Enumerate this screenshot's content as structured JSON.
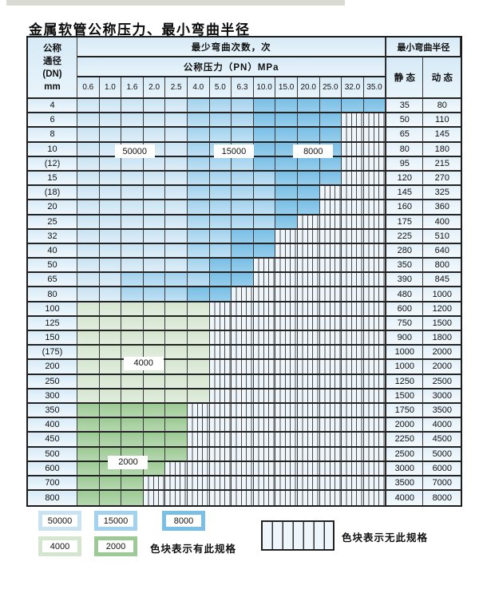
{
  "page": {
    "title": "金属软管公称压力、最小弯曲半径"
  },
  "colors": {
    "c50000": "#c9e3f3",
    "c15000": "#a2d2ee",
    "c8000": "#79bfe6",
    "c4000": "#d5e6d0",
    "c2000": "#9cca94",
    "stripe_bg": "#eff6fb",
    "grid": "#333333"
  },
  "table": {
    "header": {
      "dn_lines": [
        "公称",
        "通径",
        "(DN)",
        "mm"
      ],
      "cycles_label": "最少弯曲次数，次",
      "pressure_label": "公称压力（PN）MPa",
      "pressure_columns": [
        "0.6",
        "1.0",
        "1.6",
        "2.0",
        "2.5",
        "4.0",
        "5.0",
        "6.3",
        "10.0",
        "15.0",
        "20.0",
        "25.0",
        "32.0",
        "35.0"
      ],
      "radius_label": "最小弯曲半径",
      "static_label": "静 态",
      "dynamic_label": "动 态"
    },
    "overlay_labels": [
      {
        "text": "50000",
        "ci": 2.6,
        "ri": 3.6
      },
      {
        "text": "15000",
        "ci": 7.1,
        "ri": 3.6
      },
      {
        "text": "8000",
        "ci": 10.7,
        "ri": 3.6
      },
      {
        "text": "4000",
        "ci": 3.0,
        "ri": 18.2
      },
      {
        "text": "2000",
        "ci": 2.3,
        "ri": 25.0
      }
    ],
    "rows": [
      {
        "dn": "4",
        "static": "35",
        "dynamic": "80",
        "cells": [
          "50000",
          "50000",
          "50000",
          "50000",
          "50000",
          "15000",
          "15000",
          "15000",
          "8000",
          "8000",
          "8000",
          "8000",
          "8000",
          "8000"
        ]
      },
      {
        "dn": "6",
        "static": "50",
        "dynamic": "110",
        "cells": [
          "50000",
          "50000",
          "50000",
          "50000",
          "50000",
          "15000",
          "15000",
          "15000",
          "8000",
          "8000",
          "8000",
          "8000",
          "none",
          "none"
        ]
      },
      {
        "dn": "8",
        "static": "65",
        "dynamic": "145",
        "cells": [
          "50000",
          "50000",
          "50000",
          "50000",
          "50000",
          "15000",
          "15000",
          "15000",
          "8000",
          "8000",
          "8000",
          "8000",
          "none",
          "none"
        ]
      },
      {
        "dn": "10",
        "static": "80",
        "dynamic": "180",
        "cells": [
          "50000",
          "50000",
          "50000",
          "50000",
          "50000",
          "15000",
          "15000",
          "15000",
          "8000",
          "8000",
          "8000",
          "8000",
          "none",
          "none"
        ]
      },
      {
        "dn": "(12)",
        "static": "95",
        "dynamic": "215",
        "cells": [
          "50000",
          "50000",
          "50000",
          "50000",
          "50000",
          "15000",
          "15000",
          "15000",
          "8000",
          "8000",
          "8000",
          "8000",
          "none",
          "none"
        ]
      },
      {
        "dn": "15",
        "static": "120",
        "dynamic": "270",
        "cells": [
          "50000",
          "50000",
          "50000",
          "50000",
          "50000",
          "15000",
          "15000",
          "15000",
          "15000",
          "8000",
          "8000",
          "8000",
          "none",
          "none"
        ]
      },
      {
        "dn": "(18)",
        "static": "145",
        "dynamic": "325",
        "cells": [
          "50000",
          "50000",
          "50000",
          "50000",
          "50000",
          "15000",
          "15000",
          "15000",
          "15000",
          "8000",
          "8000",
          "none",
          "none",
          "none"
        ]
      },
      {
        "dn": "20",
        "static": "160",
        "dynamic": "360",
        "cells": [
          "50000",
          "50000",
          "50000",
          "50000",
          "50000",
          "15000",
          "15000",
          "15000",
          "15000",
          "8000",
          "8000",
          "none",
          "none",
          "none"
        ]
      },
      {
        "dn": "25",
        "static": "175",
        "dynamic": "400",
        "cells": [
          "50000",
          "50000",
          "50000",
          "50000",
          "50000",
          "15000",
          "15000",
          "15000",
          "15000",
          "8000",
          "none",
          "none",
          "none",
          "none"
        ]
      },
      {
        "dn": "32",
        "static": "225",
        "dynamic": "510",
        "cells": [
          "50000",
          "50000",
          "50000",
          "50000",
          "50000",
          "15000",
          "15000",
          "8000",
          "8000",
          "none",
          "none",
          "none",
          "none",
          "none"
        ]
      },
      {
        "dn": "40",
        "static": "280",
        "dynamic": "640",
        "cells": [
          "50000",
          "50000",
          "50000",
          "50000",
          "50000",
          "15000",
          "15000",
          "8000",
          "8000",
          "none",
          "none",
          "none",
          "none",
          "none"
        ]
      },
      {
        "dn": "50",
        "static": "350",
        "dynamic": "800",
        "cells": [
          "50000",
          "50000",
          "50000",
          "50000",
          "50000",
          "15000",
          "8000",
          "8000",
          "none",
          "none",
          "none",
          "none",
          "none",
          "none"
        ]
      },
      {
        "dn": "65",
        "static": "390",
        "dynamic": "845",
        "cells": [
          "50000",
          "50000",
          "15000",
          "15000",
          "15000",
          "15000",
          "8000",
          "8000",
          "none",
          "none",
          "none",
          "none",
          "none",
          "none"
        ]
      },
      {
        "dn": "80",
        "static": "480",
        "dynamic": "1000",
        "cells": [
          "50000",
          "50000",
          "15000",
          "15000",
          "15000",
          "8000",
          "8000",
          "none",
          "none",
          "none",
          "none",
          "none",
          "none",
          "none"
        ]
      },
      {
        "dn": "100",
        "static": "600",
        "dynamic": "1200",
        "cells": [
          "4000",
          "4000",
          "4000",
          "4000",
          "4000",
          "4000",
          "none",
          "none",
          "none",
          "none",
          "none",
          "none",
          "none",
          "none"
        ]
      },
      {
        "dn": "125",
        "static": "750",
        "dynamic": "1500",
        "cells": [
          "4000",
          "4000",
          "4000",
          "4000",
          "4000",
          "4000",
          "none",
          "none",
          "none",
          "none",
          "none",
          "none",
          "none",
          "none"
        ]
      },
      {
        "dn": "150",
        "static": "900",
        "dynamic": "1800",
        "cells": [
          "4000",
          "4000",
          "4000",
          "4000",
          "4000",
          "4000",
          "none",
          "none",
          "none",
          "none",
          "none",
          "none",
          "none",
          "none"
        ]
      },
      {
        "dn": "(175)",
        "static": "1000",
        "dynamic": "2000",
        "cells": [
          "4000",
          "4000",
          "4000",
          "4000",
          "4000",
          "4000",
          "none",
          "none",
          "none",
          "none",
          "none",
          "none",
          "none",
          "none"
        ]
      },
      {
        "dn": "200",
        "static": "1000",
        "dynamic": "2000",
        "cells": [
          "4000",
          "4000",
          "4000",
          "4000",
          "4000",
          "4000",
          "none",
          "none",
          "none",
          "none",
          "none",
          "none",
          "none",
          "none"
        ]
      },
      {
        "dn": "250",
        "static": "1250",
        "dynamic": "2500",
        "cells": [
          "4000",
          "4000",
          "4000",
          "4000",
          "4000",
          "4000",
          "none",
          "none",
          "none",
          "none",
          "none",
          "none",
          "none",
          "none"
        ]
      },
      {
        "dn": "300",
        "static": "1500",
        "dynamic": "3000",
        "cells": [
          "4000",
          "4000",
          "4000",
          "4000",
          "4000",
          "4000",
          "none",
          "none",
          "none",
          "none",
          "none",
          "none",
          "none",
          "none"
        ]
      },
      {
        "dn": "350",
        "static": "1750",
        "dynamic": "3500",
        "cells": [
          "2000",
          "2000",
          "2000",
          "2000",
          "2000",
          "none",
          "none",
          "none",
          "none",
          "none",
          "none",
          "none",
          "none",
          "none"
        ]
      },
      {
        "dn": "400",
        "static": "2000",
        "dynamic": "4000",
        "cells": [
          "2000",
          "2000",
          "2000",
          "2000",
          "2000",
          "none",
          "none",
          "none",
          "none",
          "none",
          "none",
          "none",
          "none",
          "none"
        ]
      },
      {
        "dn": "450",
        "static": "2250",
        "dynamic": "4500",
        "cells": [
          "2000",
          "2000",
          "2000",
          "2000",
          "2000",
          "none",
          "none",
          "none",
          "none",
          "none",
          "none",
          "none",
          "none",
          "none"
        ]
      },
      {
        "dn": "500",
        "static": "2500",
        "dynamic": "5000",
        "cells": [
          "2000",
          "2000",
          "2000",
          "2000",
          "2000",
          "none",
          "none",
          "none",
          "none",
          "none",
          "none",
          "none",
          "none",
          "none"
        ]
      },
      {
        "dn": "600",
        "static": "3000",
        "dynamic": "6000",
        "cells": [
          "2000",
          "2000",
          "2000",
          "2000",
          "none",
          "none",
          "none",
          "none",
          "none",
          "none",
          "none",
          "none",
          "none",
          "none"
        ]
      },
      {
        "dn": "700",
        "static": "3500",
        "dynamic": "7000",
        "cells": [
          "2000",
          "2000",
          "2000",
          "none",
          "none",
          "none",
          "none",
          "none",
          "none",
          "none",
          "none",
          "none",
          "none",
          "none"
        ]
      },
      {
        "dn": "800",
        "static": "4000",
        "dynamic": "8000",
        "cells": [
          "2000",
          "2000",
          "2000",
          "none",
          "none",
          "none",
          "none",
          "none",
          "none",
          "none",
          "none",
          "none",
          "none",
          "none"
        ]
      }
    ]
  },
  "legend": {
    "chips": [
      {
        "label": "50000",
        "color": "c50000"
      },
      {
        "label": "15000",
        "color": "c15000"
      },
      {
        "label": "8000",
        "color": "c8000"
      },
      {
        "label": "4000",
        "color": "c4000"
      },
      {
        "label": "2000",
        "color": "c2000"
      }
    ],
    "has_spec_text": "色块表示有此规格",
    "no_spec_text": "色块表示无此规格"
  }
}
